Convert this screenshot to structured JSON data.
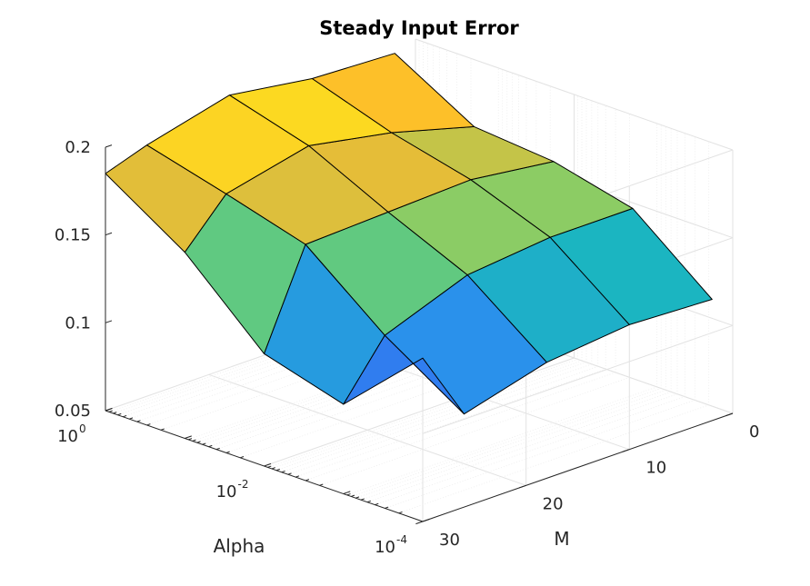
{
  "chart_data": {
    "type": "surface",
    "title": "Steady Input Error",
    "xlabel": "Alpha",
    "ylabel": "M",
    "zlabel": "",
    "x_scale": "log",
    "alpha_ticks": [
      {
        "value": 1,
        "base": "10",
        "exp": "0"
      },
      {
        "value": 0.01,
        "base": "10",
        "exp": "-2"
      },
      {
        "value": 0.0001,
        "base": "10",
        "exp": "-4"
      }
    ],
    "m_ticks": [
      "0",
      "10",
      "20",
      "30"
    ],
    "z_ticks": [
      "0.05",
      "0.1",
      "0.15",
      "0.2"
    ],
    "zlim": [
      0.05,
      0.2
    ],
    "grid": true,
    "colormap": "parula",
    "colors": [
      "#3e26a8",
      "#2e87f7",
      "#15c4b0",
      "#95cd5f",
      "#feb82c",
      "#f9fb15"
    ],
    "alpha": [
      1,
      0.1,
      0.01,
      0.001,
      0.0001
    ],
    "m": [
      2,
      10,
      18,
      26,
      30
    ],
    "z": [
      [
        0.196,
        0.198,
        0.205,
        0.193,
        0.185
      ],
      [
        0.17,
        0.183,
        0.192,
        0.181,
        0.156
      ],
      [
        0.166,
        0.172,
        0.17,
        0.168,
        0.114
      ],
      [
        0.155,
        0.155,
        0.15,
        0.132,
        0.101
      ],
      [
        0.119,
        0.121,
        0.116,
        0.103,
        0.143
      ]
    ]
  }
}
